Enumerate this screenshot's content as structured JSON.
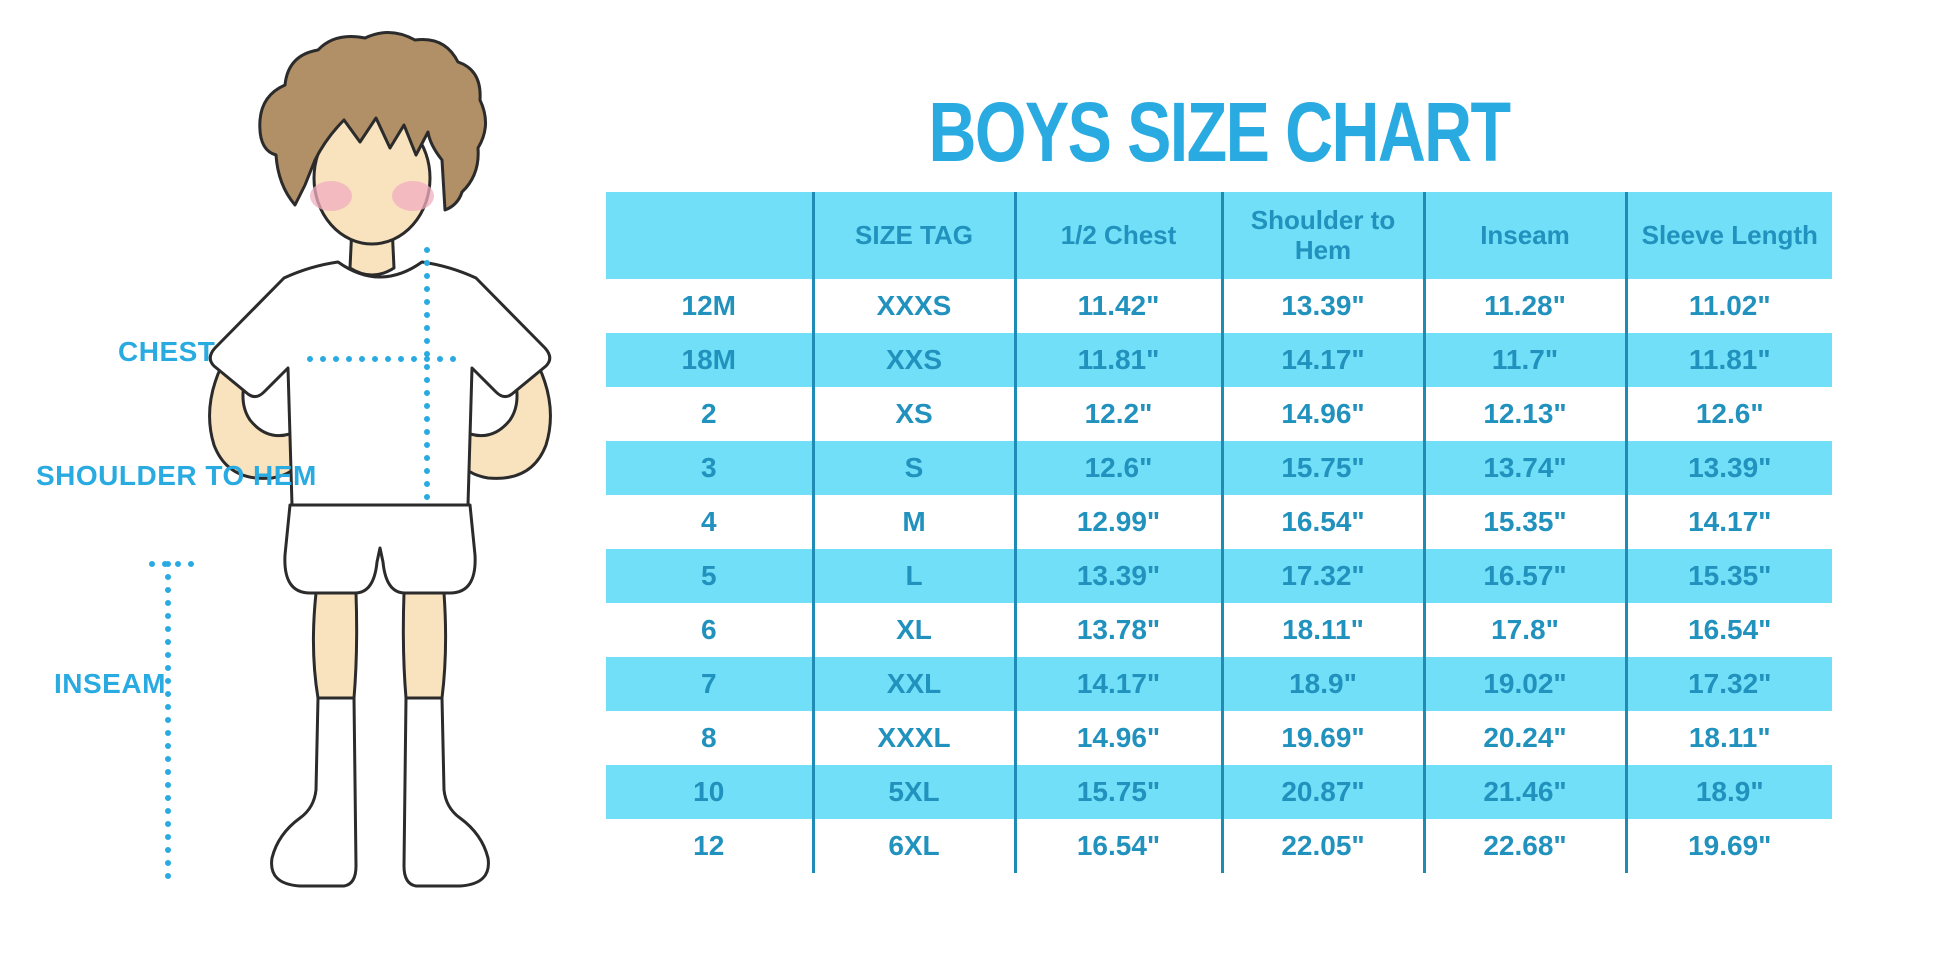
{
  "title": "BOYS SIZE CHART",
  "figure": {
    "labels": {
      "chest": "CHEST",
      "shoulder_to_hem": "SHOULDER TO HEM",
      "inseam": "INSEAM"
    }
  },
  "table": {
    "headers": [
      "",
      "SIZE TAG",
      "1/2 Chest",
      "Shoulder to Hem",
      "Inseam",
      "Sleeve Length"
    ],
    "rows": [
      {
        "cells": [
          "12M",
          "XXXS",
          "11.42\"",
          "13.39\"",
          "11.28\"",
          "11.02\""
        ]
      },
      {
        "cells": [
          "18M",
          "XXS",
          "11.81\"",
          "14.17\"",
          "11.7\"",
          "11.81\""
        ]
      },
      {
        "cells": [
          "2",
          "XS",
          "12.2\"",
          "14.96\"",
          "12.13\"",
          "12.6\""
        ]
      },
      {
        "cells": [
          "3",
          "S",
          "12.6\"",
          "15.75\"",
          "13.74\"",
          "13.39\""
        ]
      },
      {
        "cells": [
          "4",
          "M",
          "12.99\"",
          "16.54\"",
          "15.35\"",
          "14.17\""
        ]
      },
      {
        "cells": [
          "5",
          "L",
          "13.39\"",
          "17.32\"",
          "16.57\"",
          "15.35\""
        ]
      },
      {
        "cells": [
          "6",
          "XL",
          "13.78\"",
          "18.11\"",
          "17.8\"",
          "16.54\""
        ]
      },
      {
        "cells": [
          "7",
          "XXL",
          "14.17\"",
          "18.9\"",
          "19.02\"",
          "17.32\""
        ]
      },
      {
        "cells": [
          "8",
          "XXXL",
          "14.96\"",
          "19.69\"",
          "20.24\"",
          "18.11\""
        ]
      },
      {
        "cells": [
          "10",
          "5XL",
          "15.75\"",
          "20.87\"",
          "21.46\"",
          "18.9\""
        ]
      },
      {
        "cells": [
          "12",
          "6XL",
          "16.54\"",
          "22.05\"",
          "22.68\"",
          "19.69\""
        ]
      }
    ]
  },
  "colors": {
    "accent_blue": "#29ABE2",
    "table_stripe": "#70DFF7",
    "table_text": "#2191BD",
    "table_divider": "#1E8CB5",
    "skin": "#F8E3BE",
    "hair": "#B18F67",
    "blush": "#F2ADC0",
    "outline": "#2B2B2B"
  }
}
